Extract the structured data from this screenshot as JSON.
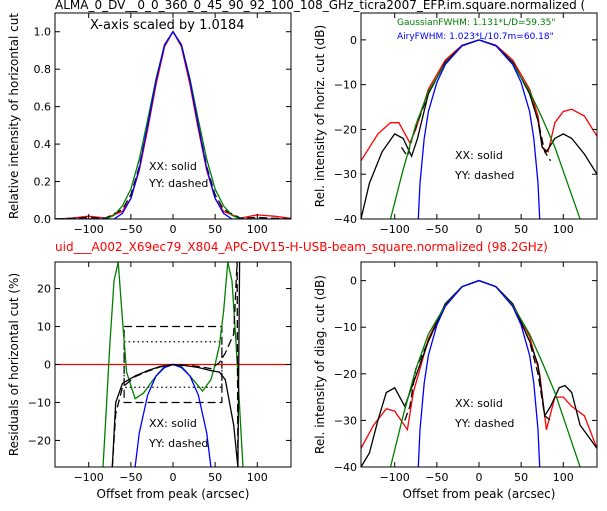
{
  "top_title": "ALMA_0_DV__0_0_360_0_45_90_92_100_108_GHz_ticra2007_EFP.im.square.normalized (",
  "mid_title": "uid___A002_X69ec79_X804_APC-DV15-H-USB-beam_square.normalized (98.2GHz)",
  "colors": {
    "red": "#ff0000",
    "black": "#000000",
    "green": "#007f00",
    "blue": "#0000ff"
  },
  "chart_data": [
    {
      "type": "line",
      "id": "top-left",
      "ylabel": "Relative intensity of horizontal cut",
      "xlim": [
        -140,
        140
      ],
      "ylim": [
        0,
        1.1
      ],
      "xticks": [
        -100,
        -50,
        0,
        50,
        100
      ],
      "yticks": [
        0.0,
        0.2,
        0.4,
        0.6,
        0.8,
        1.0
      ],
      "ytick_labels": [
        "0.0",
        "0.2",
        "0.4",
        "0.6",
        "0.8",
        "1.0"
      ],
      "annotations": [
        "X-axis scaled by 1.0184",
        "XX: solid",
        "YY: dashed"
      ],
      "series": [
        {
          "color": "red",
          "style": "solid",
          "x": [
            -140,
            -120,
            -100,
            -80,
            -60,
            -50,
            -40,
            -30,
            -20,
            -10,
            0,
            10,
            20,
            30,
            40,
            50,
            60,
            80,
            100,
            120,
            140
          ],
          "y": [
            0.0,
            0.005,
            0.015,
            0.005,
            0.04,
            0.11,
            0.26,
            0.48,
            0.72,
            0.92,
            1.0,
            0.92,
            0.72,
            0.48,
            0.26,
            0.11,
            0.04,
            0.005,
            0.022,
            0.015,
            0.003
          ]
        },
        {
          "color": "black",
          "style": "dashed",
          "x": [
            -140,
            -100,
            -80,
            -60,
            -50,
            -40,
            -30,
            -20,
            -10,
            0,
            10,
            20,
            30,
            40,
            50,
            60,
            80,
            100,
            140
          ],
          "y": [
            0.0,
            0.008,
            0.005,
            0.05,
            0.13,
            0.28,
            0.5,
            0.74,
            0.93,
            1.0,
            0.93,
            0.74,
            0.5,
            0.28,
            0.13,
            0.05,
            0.005,
            0.008,
            0.0
          ]
        },
        {
          "color": "green",
          "style": "solid",
          "x": [
            -140,
            -80,
            -70,
            -60,
            -50,
            -40,
            -30,
            -20,
            -10,
            0,
            10,
            20,
            30,
            40,
            50,
            60,
            70,
            80,
            140
          ],
          "y": [
            0.0,
            0.0,
            0.02,
            0.07,
            0.16,
            0.32,
            0.53,
            0.75,
            0.93,
            1.0,
            0.93,
            0.75,
            0.53,
            0.32,
            0.16,
            0.07,
            0.02,
            0.0,
            0.0
          ]
        },
        {
          "color": "blue",
          "style": "solid",
          "x": [
            -140,
            -70,
            -60,
            -50,
            -40,
            -30,
            -20,
            -10,
            0,
            10,
            20,
            30,
            40,
            50,
            60,
            70,
            140
          ],
          "y": [
            0.0,
            0.0,
            0.03,
            0.11,
            0.27,
            0.5,
            0.74,
            0.93,
            1.0,
            0.93,
            0.74,
            0.5,
            0.27,
            0.11,
            0.03,
            0.0,
            0.0
          ]
        }
      ]
    },
    {
      "type": "line",
      "id": "top-right",
      "ylabel": "Rel. intensity of horiz. cut (dB)",
      "xlim": [
        -140,
        140
      ],
      "ylim": [
        -40,
        6
      ],
      "xticks": [
        -100,
        -50,
        0,
        50,
        100
      ],
      "yticks": [
        0,
        -10,
        -20,
        -30,
        -40
      ],
      "ytick_labels": [
        "0",
        "−10",
        "−20",
        "−30",
        "−40"
      ],
      "annotations": [
        "XX: solid",
        "YY: dashed"
      ],
      "legend_lines": [
        {
          "text": "GaussianFWHM: 1.131*L/D=59.35\"",
          "color": "green"
        },
        {
          "text": "AiryFWHM: 1.023*L/10.7m=60.18\"",
          "color": "blue"
        }
      ],
      "series": [
        {
          "color": "red",
          "style": "solid",
          "x": [
            -140,
            -120,
            -105,
            -95,
            -82,
            -75,
            -60,
            -40,
            -20,
            0,
            20,
            40,
            60,
            70,
            75,
            82,
            90,
            100,
            110,
            125,
            140
          ],
          "y": [
            -27,
            -21,
            -18.5,
            -18.5,
            -23,
            -20,
            -11,
            -4.5,
            -1.2,
            0,
            -1.2,
            -4.5,
            -11,
            -17,
            -24,
            -25,
            -18.5,
            -16,
            -15.5,
            -17,
            -21.5
          ]
        },
        {
          "color": "black",
          "style": "solid",
          "x": [
            -140,
            -130,
            -115,
            -100,
            -90,
            -80,
            -73,
            -60,
            -40,
            -20,
            0,
            20,
            40,
            60,
            70,
            75,
            80,
            90,
            100,
            110,
            125,
            140
          ],
          "y": [
            -40,
            -32,
            -25,
            -21,
            -22,
            -26,
            -22,
            -12,
            -5,
            -1.3,
            0,
            -1.3,
            -5,
            -12,
            -18,
            -24,
            -25,
            -22,
            -21,
            -22,
            -25.5,
            -30
          ]
        },
        {
          "color": "black",
          "style": "dashed",
          "x": [
            -92,
            -85,
            -78,
            -70,
            -60,
            -40,
            -20,
            0,
            20,
            40,
            60,
            70,
            78,
            85
          ],
          "y": [
            -24,
            -26,
            -21,
            -17,
            -12,
            -5,
            -1.3,
            0,
            -1.3,
            -5,
            -12,
            -18,
            -25,
            -27
          ]
        },
        {
          "color": "green",
          "style": "solid",
          "x": [
            -105,
            -90,
            -75,
            -60,
            -40,
            -20,
            0,
            20,
            40,
            60,
            75,
            90,
            105,
            120
          ],
          "y": [
            -40,
            -29,
            -19,
            -11.5,
            -5.3,
            -1.3,
            0,
            -1.3,
            -5.3,
            -11.5,
            -17.5,
            -24,
            -32,
            -40
          ]
        },
        {
          "color": "blue",
          "style": "solid",
          "x": [
            -72,
            -70,
            -65,
            -60,
            -50,
            -40,
            -20,
            0,
            20,
            40,
            50,
            60,
            65,
            70,
            72
          ],
          "y": [
            -40,
            -32,
            -22,
            -16,
            -9.5,
            -5.5,
            -1.3,
            0,
            -1.3,
            -5.5,
            -9.5,
            -16,
            -22,
            -32,
            -40
          ]
        }
      ]
    },
    {
      "type": "line",
      "id": "bottom-left",
      "ylabel": "Residuals of horizontal cut (%)",
      "xlabel": "Offset from peak (arcsec)",
      "xlim": [
        -140,
        140
      ],
      "ylim": [
        -27,
        27
      ],
      "xticks": [
        -100,
        -50,
        0,
        50,
        100
      ],
      "xtick_labels": [
        "−100",
        "−50",
        "0",
        "50",
        "100"
      ],
      "yticks": [
        20,
        10,
        0,
        -10,
        -20
      ],
      "ytick_labels": [
        "20",
        "10",
        "0",
        "−10",
        "−20"
      ],
      "annotations": [
        "XX: solid",
        "YY: dashed"
      ],
      "series": [
        {
          "color": "red",
          "style": "solid",
          "x": [
            -140,
            140
          ],
          "y": [
            0,
            0
          ]
        },
        {
          "color": "green",
          "style": "solid",
          "x": [
            -83,
            -80,
            -75,
            -70,
            -65,
            -60,
            -55,
            -45,
            -35,
            -20,
            -10,
            0,
            10,
            20,
            35,
            45,
            50,
            55,
            60,
            65,
            70,
            75,
            80,
            83
          ],
          "y": [
            -27,
            -15,
            5,
            22,
            27,
            12,
            -2,
            -9,
            -7.5,
            -3,
            -0.5,
            0,
            -0.5,
            -3,
            -7,
            -4,
            0,
            5,
            14,
            27,
            22,
            5,
            -15,
            -27
          ]
        },
        {
          "color": "blue",
          "style": "solid",
          "x": [
            -45,
            -40,
            -30,
            -20,
            -10,
            0,
            10,
            20,
            30,
            40,
            45
          ],
          "y": [
            -27,
            -18,
            -8,
            -3,
            -0.8,
            0,
            -0.8,
            -3,
            -8,
            -18,
            -27
          ]
        },
        {
          "color": "black",
          "style": "solid",
          "x": [
            -72,
            -68,
            -60,
            -45,
            -30,
            -15,
            0,
            15,
            30,
            45,
            55,
            62,
            72,
            77,
            79
          ],
          "y": [
            -27,
            -10,
            -5,
            -3,
            -1.6,
            -0.5,
            0,
            -0.3,
            -0.8,
            -1.6,
            -2,
            -4,
            -16,
            -27,
            27
          ]
        },
        {
          "color": "black",
          "style": "dashed",
          "x": [
            -72,
            -68,
            -60,
            -45,
            -30,
            -15,
            0,
            15,
            30,
            45,
            55,
            62,
            72,
            76,
            77
          ],
          "y": [
            -27,
            -13,
            -6,
            -3.2,
            -1.8,
            -0.6,
            0,
            -0.2,
            -0.5,
            -1.1,
            0.5,
            3,
            8,
            27,
            -27
          ]
        }
      ],
      "boxes": [
        {
          "style": "dashed",
          "x": [
            -58,
            58
          ],
          "y": [
            -10,
            10
          ]
        },
        {
          "style": "dotted",
          "x": [
            -58,
            58
          ],
          "y": [
            -6,
            6
          ]
        }
      ]
    },
    {
      "type": "line",
      "id": "bottom-right",
      "ylabel": "Rel. intensity of diag. cut (dB)",
      "xlabel": "Offset from peak (arcsec)",
      "xlim": [
        -140,
        140
      ],
      "ylim": [
        -40,
        4
      ],
      "xticks": [
        -100,
        -50,
        0,
        50,
        100
      ],
      "xtick_labels": [
        "−100",
        "−50",
        "0",
        "50",
        "100"
      ],
      "yticks": [
        0,
        -10,
        -20,
        -30,
        -40
      ],
      "ytick_labels": [
        "0",
        "−10",
        "−20",
        "−30",
        "−40"
      ],
      "annotations": [
        "XX: solid",
        "YY: dashed"
      ],
      "series": [
        {
          "color": "red",
          "style": "solid",
          "x": [
            -140,
            -125,
            -110,
            -100,
            -85,
            -78,
            -60,
            -40,
            -20,
            0,
            20,
            40,
            60,
            72,
            80,
            90,
            100,
            110,
            125,
            140
          ],
          "y": [
            -36,
            -31,
            -27.5,
            -28,
            -32,
            -24,
            -12.5,
            -5,
            -1.3,
            0,
            -1.3,
            -5,
            -12,
            -20,
            -32,
            -25,
            -25,
            -27,
            -29,
            -36
          ]
        },
        {
          "color": "black",
          "style": "solid",
          "x": [
            -140,
            -130,
            -120,
            -110,
            -100,
            -88,
            -78,
            -60,
            -40,
            -20,
            0,
            20,
            40,
            60,
            70,
            78,
            85,
            95,
            102,
            110,
            120,
            140
          ],
          "y": [
            -40,
            -37,
            -30,
            -24,
            -23,
            -27,
            -22,
            -13,
            -5,
            -1.3,
            0,
            -1.3,
            -5,
            -13,
            -18,
            -29,
            -27,
            -23,
            -22.5,
            -24,
            -31,
            -36
          ]
        },
        {
          "color": "black",
          "style": "dashed",
          "x": [
            -88,
            -82,
            -75,
            -60,
            -40,
            -20,
            0,
            20,
            40,
            60,
            70,
            78,
            85
          ],
          "y": [
            -30,
            -27,
            -19,
            -13,
            -5,
            -1.3,
            0,
            -1.3,
            -5,
            -13,
            -20,
            -29,
            -30
          ]
        },
        {
          "color": "green",
          "style": "solid",
          "x": [
            -105,
            -90,
            -75,
            -60,
            -40,
            -20,
            0,
            20,
            40,
            60,
            75,
            90,
            105,
            120
          ],
          "y": [
            -40,
            -29,
            -19,
            -11.5,
            -5.3,
            -1.3,
            0,
            -1.3,
            -5.3,
            -11.5,
            -17.5,
            -24,
            -32,
            -40
          ]
        },
        {
          "color": "blue",
          "style": "solid",
          "x": [
            -72,
            -70,
            -65,
            -60,
            -50,
            -40,
            -20,
            0,
            20,
            40,
            50,
            60,
            65,
            70,
            72
          ],
          "y": [
            -40,
            -32,
            -22,
            -16,
            -9.5,
            -5.5,
            -1.3,
            0,
            -1.3,
            -5.5,
            -9.5,
            -16,
            -22,
            -32,
            -40
          ]
        }
      ]
    }
  ]
}
